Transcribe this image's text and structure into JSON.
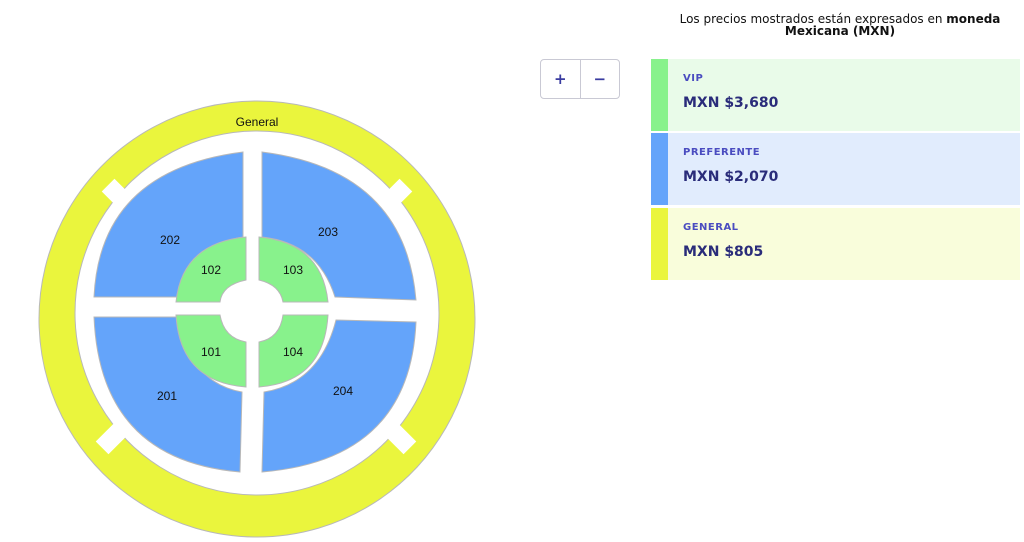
{
  "map": {
    "sections": [
      {
        "id": "general",
        "label": "General",
        "tier": "general"
      },
      {
        "id": "202",
        "label": "202",
        "tier": "preferente"
      },
      {
        "id": "203",
        "label": "203",
        "tier": "preferente"
      },
      {
        "id": "201",
        "label": "201",
        "tier": "preferente"
      },
      {
        "id": "204",
        "label": "204",
        "tier": "preferente"
      },
      {
        "id": "102",
        "label": "102",
        "tier": "vip"
      },
      {
        "id": "103",
        "label": "103",
        "tier": "vip"
      },
      {
        "id": "101",
        "label": "101",
        "tier": "vip"
      },
      {
        "id": "104",
        "label": "104",
        "tier": "vip"
      }
    ],
    "colors": {
      "general": "#eaf53d",
      "preferente": "#64a4fa",
      "vip": "#88f28c",
      "outline": "#b8b8b8"
    }
  },
  "zoom": {
    "in_label": "+",
    "out_label": "−"
  },
  "price_note": {
    "text_prefix": "Los precios mostrados están expresados en ",
    "text_bold_1": "moneda",
    "text_bold_2": "Mexicana (MXN)"
  },
  "prices": [
    {
      "name": "VIP",
      "price": "MXN $3,680",
      "stripe_color": "#88f28c",
      "bg_color": "#e9fbe9"
    },
    {
      "name": "PREFERENTE",
      "price": "MXN $2,070",
      "stripe_color": "#64a4fa",
      "bg_color": "#e1ecfd"
    },
    {
      "name": "GENERAL",
      "price": "MXN $805",
      "stripe_color": "#eaf53d",
      "bg_color": "#f9fddb"
    }
  ]
}
